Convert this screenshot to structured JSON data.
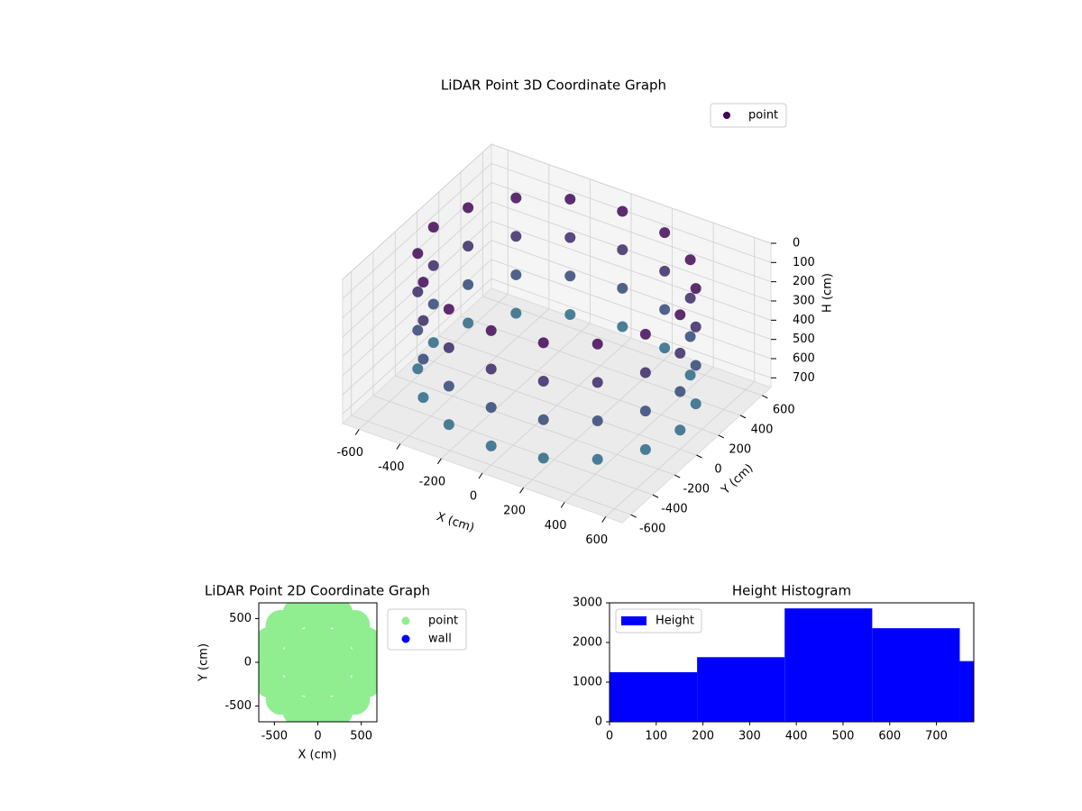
{
  "chart_data": [
    {
      "type": "scatter3d",
      "title": "LiDAR Point 3D Coordinate Graph",
      "xlabel": "X (cm)",
      "ylabel": "Y (cm)",
      "zlabel": "H (cm)",
      "xlim": [
        -680,
        680
      ],
      "ylim": [
        -680,
        680
      ],
      "zlim": [
        750,
        0
      ],
      "xticks": [
        -600,
        -400,
        -200,
        0,
        200,
        400,
        600
      ],
      "yticks": [
        -600,
        -400,
        -200,
        0,
        200,
        400,
        600
      ],
      "zticks": [
        0,
        100,
        200,
        300,
        400,
        500,
        600,
        700
      ],
      "colormap": [
        "#440154",
        "#2a788e"
      ],
      "grid": true,
      "legend": "upper right",
      "series": [
        {
          "name": "point",
          "color": "#440154",
          "x": [
            600,
            554,
            424,
            230,
            0,
            -230,
            -424,
            -554,
            -600,
            -554,
            -424,
            -230,
            0,
            230,
            424,
            554,
            600,
            554,
            424,
            230,
            0,
            -230,
            -424,
            -554,
            -600,
            -554,
            -424,
            -230,
            0,
            230,
            424,
            554,
            600,
            554,
            424,
            230,
            0,
            -230,
            -424,
            -554,
            -600,
            -554,
            -424,
            -230,
            0,
            230,
            424,
            554,
            600,
            554,
            424,
            230,
            0,
            -230,
            -424,
            -554,
            -600,
            -554,
            -424,
            -230,
            0,
            230,
            424,
            554
          ],
          "y": [
            0,
            230,
            424,
            554,
            600,
            554,
            424,
            230,
            0,
            -230,
            -424,
            -554,
            -600,
            -554,
            -424,
            -230,
            0,
            230,
            424,
            554,
            600,
            554,
            424,
            230,
            0,
            -230,
            -424,
            -554,
            -600,
            -554,
            -424,
            -230,
            0,
            230,
            424,
            554,
            600,
            554,
            424,
            230,
            0,
            -230,
            -424,
            -554,
            -600,
            -554,
            -424,
            -230,
            0,
            230,
            424,
            554,
            600,
            554,
            424,
            230,
            0,
            -230,
            -424,
            -554,
            -600,
            -554,
            -424,
            -230
          ],
          "z": [
            50,
            50,
            50,
            50,
            50,
            50,
            50,
            50,
            50,
            50,
            50,
            50,
            50,
            50,
            50,
            50,
            250,
            250,
            250,
            250,
            250,
            250,
            250,
            250,
            250,
            250,
            250,
            250,
            250,
            250,
            250,
            250,
            450,
            450,
            450,
            450,
            450,
            450,
            450,
            450,
            450,
            450,
            450,
            450,
            450,
            450,
            450,
            450,
            650,
            650,
            650,
            650,
            650,
            650,
            650,
            650,
            650,
            650,
            650,
            650,
            650,
            650,
            650,
            650
          ]
        }
      ]
    },
    {
      "type": "scatter",
      "title": "LiDAR Point 2D Coordinate Graph",
      "xlabel": "X (cm)",
      "ylabel": "Y (cm)",
      "xlim": [
        -680,
        680
      ],
      "ylim": [
        -680,
        680
      ],
      "xticks": [
        -500,
        0,
        500
      ],
      "yticks": [
        -500,
        0,
        500
      ],
      "legend": "outside right",
      "series": [
        {
          "name": "point",
          "color": "#90ee90",
          "x": [
            600,
            554,
            424,
            230,
            0,
            -230,
            -424,
            -554,
            -600,
            -554,
            -424,
            -230,
            0,
            230,
            424,
            554,
            300,
            212,
            0,
            -212,
            -300,
            -212,
            0,
            212,
            0
          ],
          "y": [
            0,
            230,
            424,
            554,
            600,
            554,
            424,
            230,
            0,
            -230,
            -424,
            -554,
            -600,
            -554,
            -424,
            -230,
            0,
            212,
            300,
            212,
            0,
            -212,
            -300,
            -212,
            0
          ]
        },
        {
          "name": "wall",
          "color": "#0000ff",
          "x": [],
          "y": []
        }
      ]
    },
    {
      "type": "histogram",
      "title": "Height Histogram",
      "bins": [
        0,
        187.5,
        375,
        562.5,
        750,
        937.5
      ],
      "counts": [
        1250,
        1630,
        2860,
        2360,
        1530
      ],
      "name": "Height",
      "color": "#0000ff",
      "legend": "upper left",
      "xlim": [
        0,
        780
      ],
      "ylim": [
        0,
        3000
      ],
      "xticks": [
        0,
        100,
        200,
        300,
        400,
        500,
        600,
        700
      ],
      "yticks": [
        0,
        1000,
        2000,
        3000
      ]
    }
  ]
}
